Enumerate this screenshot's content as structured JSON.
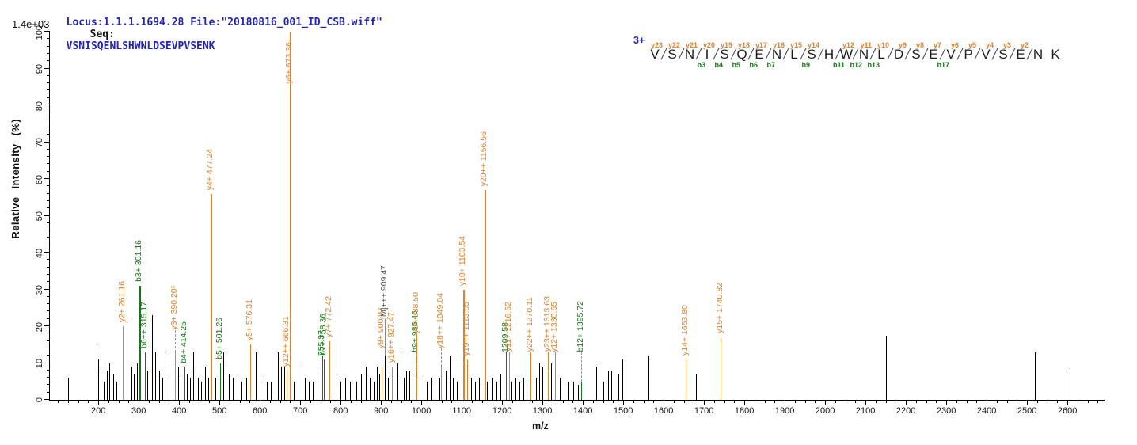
{
  "header": {
    "locus_file": "Locus:1.1.1.1694.28 File:\"20180816_001_ID_CSB.wiff\"",
    "seq_label": "Seq:",
    "seq_value": "VSNISQENLSHWNLDSEVPVSENK"
  },
  "sequence": {
    "charge": "3+",
    "residues": [
      "V",
      "S",
      "N",
      "I",
      "S",
      "Q",
      "E",
      "N",
      "L",
      "S",
      "H",
      "W",
      "N",
      "L",
      "D",
      "S",
      "E",
      "V",
      "P",
      "V",
      "S",
      "E",
      "N",
      "K"
    ],
    "gaps": [
      {
        "y": "y23",
        "b": ""
      },
      {
        "y": "y22",
        "b": ""
      },
      {
        "y": "y21",
        "b": "b3"
      },
      {
        "y": "y20",
        "b": "b4"
      },
      {
        "y": "y19",
        "b": "b5"
      },
      {
        "y": "y18",
        "b": "b6"
      },
      {
        "y": "y17",
        "b": "b7"
      },
      {
        "y": "y16",
        "b": ""
      },
      {
        "y": "y15",
        "b": "b9"
      },
      {
        "y": "y14",
        "b": ""
      },
      {
        "y": "",
        "b": "b11"
      },
      {
        "y": "y12",
        "b": "b12"
      },
      {
        "y": "y11",
        "b": "b13"
      },
      {
        "y": "y10",
        "b": ""
      },
      {
        "y": "y9",
        "b": ""
      },
      {
        "y": "y8",
        "b": ""
      },
      {
        "y": "y7",
        "b": "b17"
      },
      {
        "y": "y6",
        "b": ""
      },
      {
        "y": "y5",
        "b": ""
      },
      {
        "y": "y4",
        "b": ""
      },
      {
        "y": "y3",
        "b": ""
      },
      {
        "y": "y2",
        "b": ""
      },
      {
        "y": "",
        "b": ""
      }
    ]
  },
  "chart_data": {
    "type": "bar",
    "subtype": "ms2-fragment-spectrum",
    "title": "",
    "xlabel": "m/z",
    "ylabel": "Relative Intensity (%)",
    "y_top_annotation": "1.4e+03",
    "xlim": [
      80,
      2692
    ],
    "ylim": [
      0,
      100
    ],
    "x_major_ticks": [
      200,
      300,
      400,
      500,
      600,
      700,
      800,
      900,
      1000,
      1100,
      1200,
      1300,
      1400,
      1500,
      1600,
      1700,
      1800,
      1900,
      2000,
      2100,
      2200,
      2300,
      2400,
      2500,
      2600
    ],
    "x_minor_step": 25,
    "y_major_step": 10,
    "y_minor_step": 2,
    "legend": "none",
    "grid": false,
    "colors": {
      "y_ion": "#e0812c",
      "b_ion": "#157815",
      "peak": "#000000",
      "precursor_label": "#555555",
      "connector": "#999999",
      "header_blue": "#2323b4"
    },
    "labeled_peaks": [
      {
        "mz": 261.16,
        "h": 20,
        "label": "y2+ 261.16",
        "type": "y"
      },
      {
        "mz": 301.16,
        "h": 31,
        "label": "b3+ 301.16",
        "type": "b"
      },
      {
        "mz": 315.17,
        "h": 13,
        "label": "b6++ 315.17",
        "type": "b"
      },
      {
        "mz": 390.205,
        "h": 13,
        "label": "y3+ 390.20⁵",
        "type": "y",
        "label_h": 19,
        "dashed": true
      },
      {
        "mz": 414.25,
        "h": 9,
        "label": "b4+ 414.25",
        "type": "b"
      },
      {
        "mz": 477.24,
        "h": 56,
        "label": "y4+ 477.24",
        "type": "y"
      },
      {
        "mz": 501.26,
        "h": 10,
        "label": "b5+ 501.26",
        "type": "b"
      },
      {
        "mz": 576.31,
        "h": 15,
        "label": "y5+ 576.31",
        "type": "y"
      },
      {
        "mz": 666.31,
        "h": 8,
        "label": "y12++ 666.31",
        "type": "y"
      },
      {
        "mz": 673.36,
        "h": 100,
        "label": "y6+ 673.36",
        "type": "y",
        "label_h": 86
      },
      {
        "mz": 755.37,
        "h": 9,
        "label": "755.37",
        "type": "b",
        "label_h": 12
      },
      {
        "mz": 758.36,
        "h": 11,
        "label": "b7+ 758.36",
        "type": "b",
        "label_h": 12
      },
      {
        "mz": 772.42,
        "h": 16,
        "label": "y7+ 772.42",
        "type": "y"
      },
      {
        "mz": 900.97,
        "h": 9,
        "label": "y8+ 900.97",
        "type": "y",
        "label_h": 14,
        "dashed": true
      },
      {
        "mz": 909.47,
        "h": 12,
        "label": "[M]+++ 909.47",
        "type": "precursor",
        "label_h": 22
      },
      {
        "mz": 927.47,
        "h": 9,
        "label": "y16++ 927.47",
        "type": "y"
      },
      {
        "mz": 985.46,
        "h": 8,
        "label": "b9+ 985.46",
        "type": "b",
        "label_h": 13,
        "dashed": true
      },
      {
        "mz": 988.5,
        "h": 13,
        "label": "y9+ 988.50",
        "type": "y",
        "label_h": 18
      },
      {
        "mz": 1049.04,
        "h": 9,
        "label": "y18++ 1049.04",
        "type": "y",
        "label_h": 14,
        "dashed": true
      },
      {
        "mz": 1103.54,
        "h": 30,
        "label": "y10+ 1103.54",
        "type": "y"
      },
      {
        "mz": 1113.05,
        "h": 11,
        "label": "y19++ 1113.05",
        "type": "y"
      },
      {
        "mz": 1156.56,
        "h": 57,
        "label": "y20++ 1156.56",
        "type": "y"
      },
      {
        "mz": 1209.58,
        "h": 8,
        "label": "1209.58",
        "type": "b",
        "label_h": 13
      },
      {
        "mz": 1216.62,
        "h": 11,
        "label": "y11+ 1216.62",
        "type": "y",
        "label_h": 13
      },
      {
        "mz": 1270.11,
        "h": 10,
        "label": "y22++ 1270.11",
        "type": "y",
        "label_h": 13
      },
      {
        "mz": 1313.63,
        "h": 9,
        "label": "y23++ 1313.63",
        "type": "y",
        "label_h": 13
      },
      {
        "mz": 1330.65,
        "h": 11,
        "label": "y12+ 1330.65",
        "type": "y",
        "label_h": 13
      },
      {
        "mz": 1395.72,
        "h": 5,
        "label": "b12+ 1395.72",
        "type": "b",
        "label_h": 13,
        "dashed": true
      },
      {
        "mz": 1653.8,
        "h": 11,
        "label": "y14+ 1653.80",
        "type": "y",
        "label_h": 12
      },
      {
        "mz": 1740.82,
        "h": 17,
        "label": "y15+ 1740.82",
        "type": "y",
        "label_h": 18
      }
    ],
    "unlabeled_peaks": [
      [
        125,
        6
      ],
      [
        196,
        15
      ],
      [
        200,
        11
      ],
      [
        206,
        8
      ],
      [
        213,
        5
      ],
      [
        222,
        8
      ],
      [
        228,
        10
      ],
      [
        236,
        7
      ],
      [
        244,
        5
      ],
      [
        252,
        7
      ],
      [
        270,
        21
      ],
      [
        281,
        9
      ],
      [
        288,
        7
      ],
      [
        295,
        10
      ],
      [
        322,
        8
      ],
      [
        332,
        23
      ],
      [
        340,
        13
      ],
      [
        350,
        8
      ],
      [
        358,
        6
      ],
      [
        365,
        13
      ],
      [
        374,
        6
      ],
      [
        384,
        9
      ],
      [
        398,
        9
      ],
      [
        404,
        6
      ],
      [
        420,
        7
      ],
      [
        428,
        6
      ],
      [
        434,
        13
      ],
      [
        440,
        8
      ],
      [
        447,
        6
      ],
      [
        455,
        5
      ],
      [
        464,
        9
      ],
      [
        472,
        6
      ],
      [
        481,
        6
      ],
      [
        490,
        6
      ],
      [
        510,
        13
      ],
      [
        516,
        9
      ],
      [
        524,
        7
      ],
      [
        533,
        6
      ],
      [
        544,
        6
      ],
      [
        554,
        5
      ],
      [
        566,
        6
      ],
      [
        590,
        13
      ],
      [
        600,
        5
      ],
      [
        610,
        6
      ],
      [
        618,
        5
      ],
      [
        628,
        5
      ],
      [
        645,
        13
      ],
      [
        652,
        9
      ],
      [
        660,
        9
      ],
      [
        683,
        5
      ],
      [
        695,
        7
      ],
      [
        703,
        9
      ],
      [
        712,
        6
      ],
      [
        721,
        5
      ],
      [
        731,
        5
      ],
      [
        742,
        8
      ],
      [
        790,
        6
      ],
      [
        800,
        5
      ],
      [
        812,
        6
      ],
      [
        824,
        5
      ],
      [
        838,
        5
      ],
      [
        850,
        7
      ],
      [
        862,
        9
      ],
      [
        872,
        6
      ],
      [
        882,
        5
      ],
      [
        890,
        9
      ],
      [
        896,
        7
      ],
      [
        917,
        6
      ],
      [
        922,
        8
      ],
      [
        941,
        10
      ],
      [
        948,
        13
      ],
      [
        956,
        6
      ],
      [
        963,
        8
      ],
      [
        971,
        8
      ],
      [
        979,
        6
      ],
      [
        996,
        7
      ],
      [
        1006,
        6
      ],
      [
        1014,
        5
      ],
      [
        1024,
        6
      ],
      [
        1034,
        5
      ],
      [
        1044,
        6
      ],
      [
        1061,
        8
      ],
      [
        1071,
        12
      ],
      [
        1079,
        6
      ],
      [
        1087,
        5
      ],
      [
        1110,
        9
      ],
      [
        1124,
        6
      ],
      [
        1133,
        5
      ],
      [
        1142,
        6
      ],
      [
        1162,
        5
      ],
      [
        1176,
        6
      ],
      [
        1186,
        5
      ],
      [
        1196,
        7
      ],
      [
        1224,
        5
      ],
      [
        1234,
        6
      ],
      [
        1242,
        5
      ],
      [
        1252,
        6
      ],
      [
        1260,
        5
      ],
      [
        1284,
        6
      ],
      [
        1292,
        10
      ],
      [
        1300,
        9
      ],
      [
        1308,
        8
      ],
      [
        1322,
        10
      ],
      [
        1342,
        6
      ],
      [
        1354,
        5
      ],
      [
        1364,
        5
      ],
      [
        1376,
        5
      ],
      [
        1388,
        4
      ],
      [
        1433,
        9
      ],
      [
        1450,
        5
      ],
      [
        1463,
        8
      ],
      [
        1470,
        8
      ],
      [
        1488,
        7
      ],
      [
        1498,
        11
      ],
      [
        1563,
        12
      ],
      [
        1680,
        7
      ],
      [
        2150,
        17.5
      ],
      [
        2520,
        13
      ],
      [
        2605,
        8.5
      ]
    ]
  }
}
